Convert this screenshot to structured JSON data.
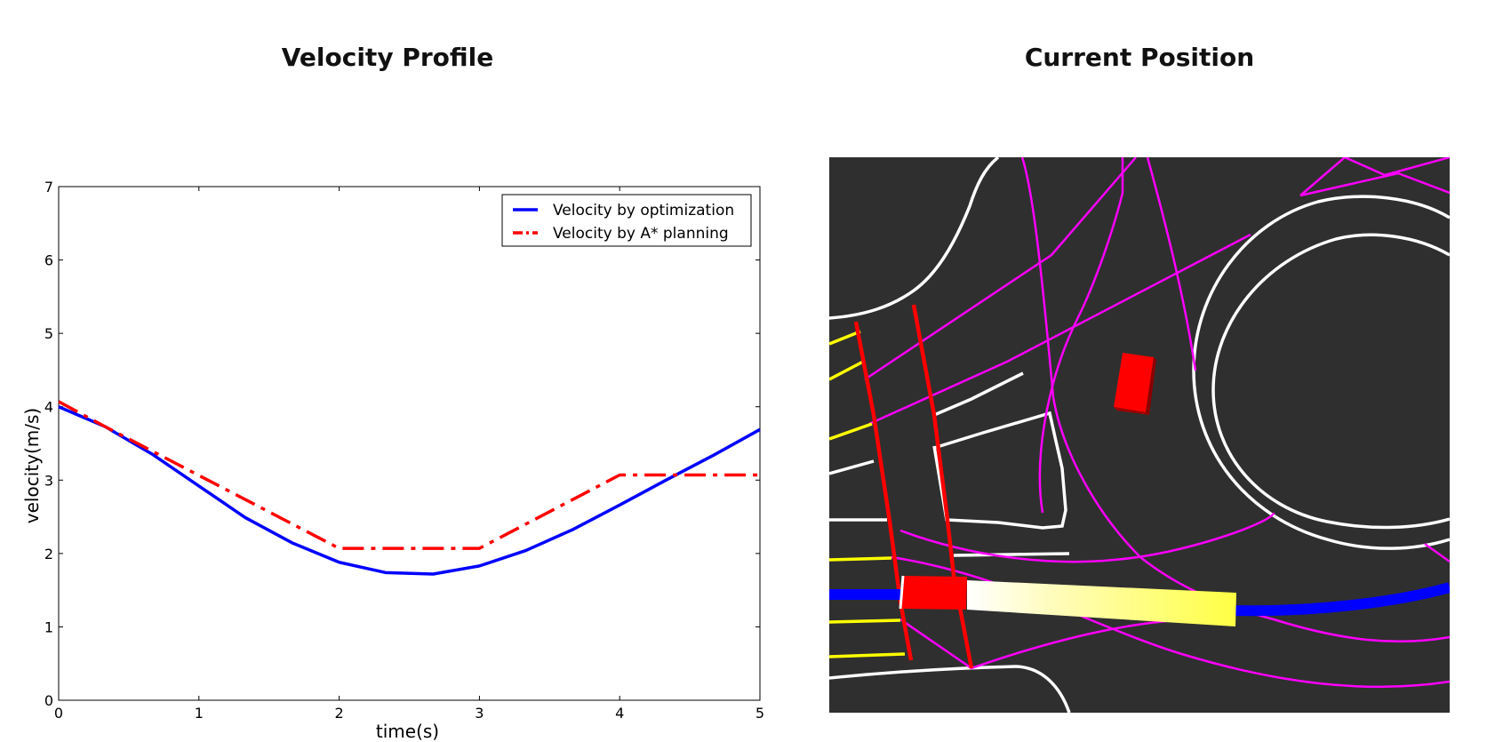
{
  "panels": {
    "left_title": "Velocity Profile",
    "right_title": "Current Position"
  },
  "chart_data": {
    "type": "line",
    "title": "Velocity Profile",
    "xlabel": "time(s)",
    "ylabel": "velocity(m/s)",
    "xlim": [
      0,
      5
    ],
    "ylim": [
      0,
      7
    ],
    "x_ticks": [
      "0",
      "1",
      "2",
      "3",
      "4",
      "5"
    ],
    "y_ticks": [
      "0",
      "1",
      "2",
      "3",
      "4",
      "5",
      "6",
      "7"
    ],
    "grid": false,
    "legend_position": "top-right",
    "series": [
      {
        "name": "Velocity by optimization",
        "color": "#0000ff",
        "style": "solid",
        "x": [
          0,
          0.33,
          0.67,
          1.0,
          1.33,
          1.67,
          2.0,
          2.33,
          2.67,
          3.0,
          3.33,
          3.67,
          4.0,
          4.33,
          4.67,
          5.0
        ],
        "y": [
          4.0,
          3.73,
          3.35,
          2.92,
          2.49,
          2.14,
          1.88,
          1.74,
          1.72,
          1.83,
          2.04,
          2.33,
          2.66,
          3.0,
          3.34,
          3.69
        ]
      },
      {
        "name": "Velocity by A* planning",
        "color": "#ff0000",
        "style": "dashdot",
        "x": [
          0,
          0.33,
          2.0,
          3.0,
          4.0,
          5.0
        ],
        "y": [
          4.07,
          3.73,
          2.07,
          2.07,
          3.07,
          3.07
        ]
      }
    ]
  },
  "map": {
    "background_color": "#2f2f2f",
    "road_color": "#ffffff",
    "lane_color": "#ff00ff",
    "stop_line_color": "#ff0000",
    "crosswalk_color": "#ffff00",
    "route_color": "#0000ff",
    "vehicle_color": "#ff0000",
    "obstacle_color": "#ff0000"
  }
}
